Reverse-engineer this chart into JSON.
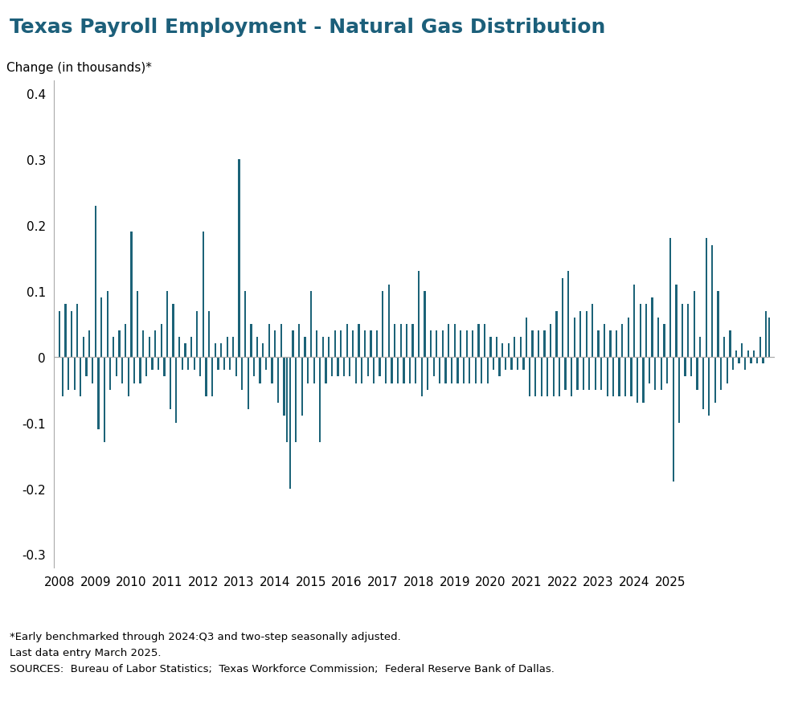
{
  "title": "Texas Payroll Employment - Natural Gas Distribution",
  "ylabel": "Change (in thousands)*",
  "ylim": [
    -0.32,
    0.42
  ],
  "yticks": [
    -0.3,
    -0.2,
    -0.1,
    0.0,
    0.1,
    0.2,
    0.3,
    0.4
  ],
  "bar_color": "#1c6378",
  "background_color": "#ffffff",
  "footnote1": "*Early benchmarked through 2024:Q3 and two-step seasonally adjusted.",
  "footnote2": "Last data entry March 2025.",
  "footnote3": "SOURCES:  Bureau of Labor Statistics;  Texas Workforce Commission;  Federal Reserve Bank of Dallas.",
  "title_color": "#1c5f7a",
  "title_fontsize": 18,
  "values": [
    0.07,
    -0.06,
    0.08,
    -0.05,
    0.07,
    -0.05,
    0.08,
    -0.06,
    0.03,
    -0.03,
    0.04,
    -0.04,
    0.23,
    -0.11,
    0.09,
    -0.13,
    0.1,
    -0.05,
    0.03,
    -0.03,
    0.04,
    -0.04,
    0.05,
    -0.06,
    0.19,
    -0.04,
    0.1,
    -0.04,
    0.04,
    -0.03,
    0.03,
    -0.02,
    0.04,
    -0.02,
    0.05,
    -0.03,
    0.1,
    -0.08,
    0.08,
    -0.1,
    0.03,
    -0.02,
    0.02,
    -0.02,
    0.03,
    -0.02,
    0.07,
    -0.03,
    0.19,
    -0.06,
    0.07,
    -0.06,
    0.02,
    -0.02,
    0.02,
    -0.02,
    0.03,
    -0.02,
    0.03,
    -0.03,
    0.3,
    -0.05,
    0.1,
    -0.08,
    0.05,
    -0.03,
    0.03,
    -0.04,
    0.02,
    -0.02,
    0.05,
    -0.04,
    0.04,
    -0.07,
    0.05,
    -0.09,
    -0.13,
    -0.2,
    0.04,
    -0.13,
    0.05,
    -0.09,
    0.03,
    -0.04,
    0.1,
    -0.04,
    0.04,
    -0.13,
    0.03,
    -0.04,
    0.03,
    -0.03,
    0.04,
    -0.03,
    0.04,
    -0.03,
    0.05,
    -0.03,
    0.04,
    -0.04,
    0.05,
    -0.04,
    0.04,
    -0.03,
    0.04,
    -0.04,
    0.04,
    -0.03,
    0.1,
    -0.04,
    0.11,
    -0.04,
    0.05,
    -0.04,
    0.05,
    -0.04,
    0.05,
    -0.04,
    0.05,
    -0.04,
    0.13,
    -0.06,
    0.1,
    -0.05,
    0.04,
    -0.03,
    0.04,
    -0.04,
    0.04,
    -0.04,
    0.05,
    -0.04,
    0.05,
    -0.04,
    0.04,
    -0.04,
    0.04,
    -0.04,
    0.04,
    -0.04,
    0.05,
    -0.04,
    0.05,
    -0.04,
    0.03,
    -0.02,
    0.03,
    -0.03,
    0.02,
    -0.02,
    0.02,
    -0.02,
    0.03,
    -0.02,
    0.03,
    -0.02,
    0.06,
    -0.06,
    0.04,
    -0.06,
    0.04,
    -0.06,
    0.04,
    -0.06,
    0.05,
    -0.06,
    0.07,
    -0.06,
    0.12,
    -0.05,
    0.13,
    -0.06,
    0.06,
    -0.05,
    0.07,
    -0.05,
    0.07,
    -0.05,
    0.08,
    -0.05,
    0.04,
    -0.05,
    0.05,
    -0.06,
    0.04,
    -0.06,
    0.04,
    -0.06,
    0.05,
    -0.06,
    0.06,
    -0.06,
    0.11,
    -0.07,
    0.08,
    -0.07,
    0.08,
    -0.04,
    0.09,
    -0.05,
    0.06,
    -0.05,
    0.05,
    -0.04,
    0.18,
    -0.19,
    0.11,
    -0.1,
    0.08,
    -0.03,
    0.08,
    -0.03,
    0.1,
    -0.05,
    0.03,
    -0.08,
    0.18,
    -0.09,
    0.17,
    -0.07,
    0.1,
    -0.05,
    0.03,
    -0.04,
    0.04,
    -0.02,
    0.01,
    -0.01,
    0.02,
    -0.02,
    0.01,
    -0.01,
    0.01,
    -0.01,
    0.03,
    -0.01,
    0.07,
    0.06
  ],
  "start_year": 2008,
  "start_month": 1
}
